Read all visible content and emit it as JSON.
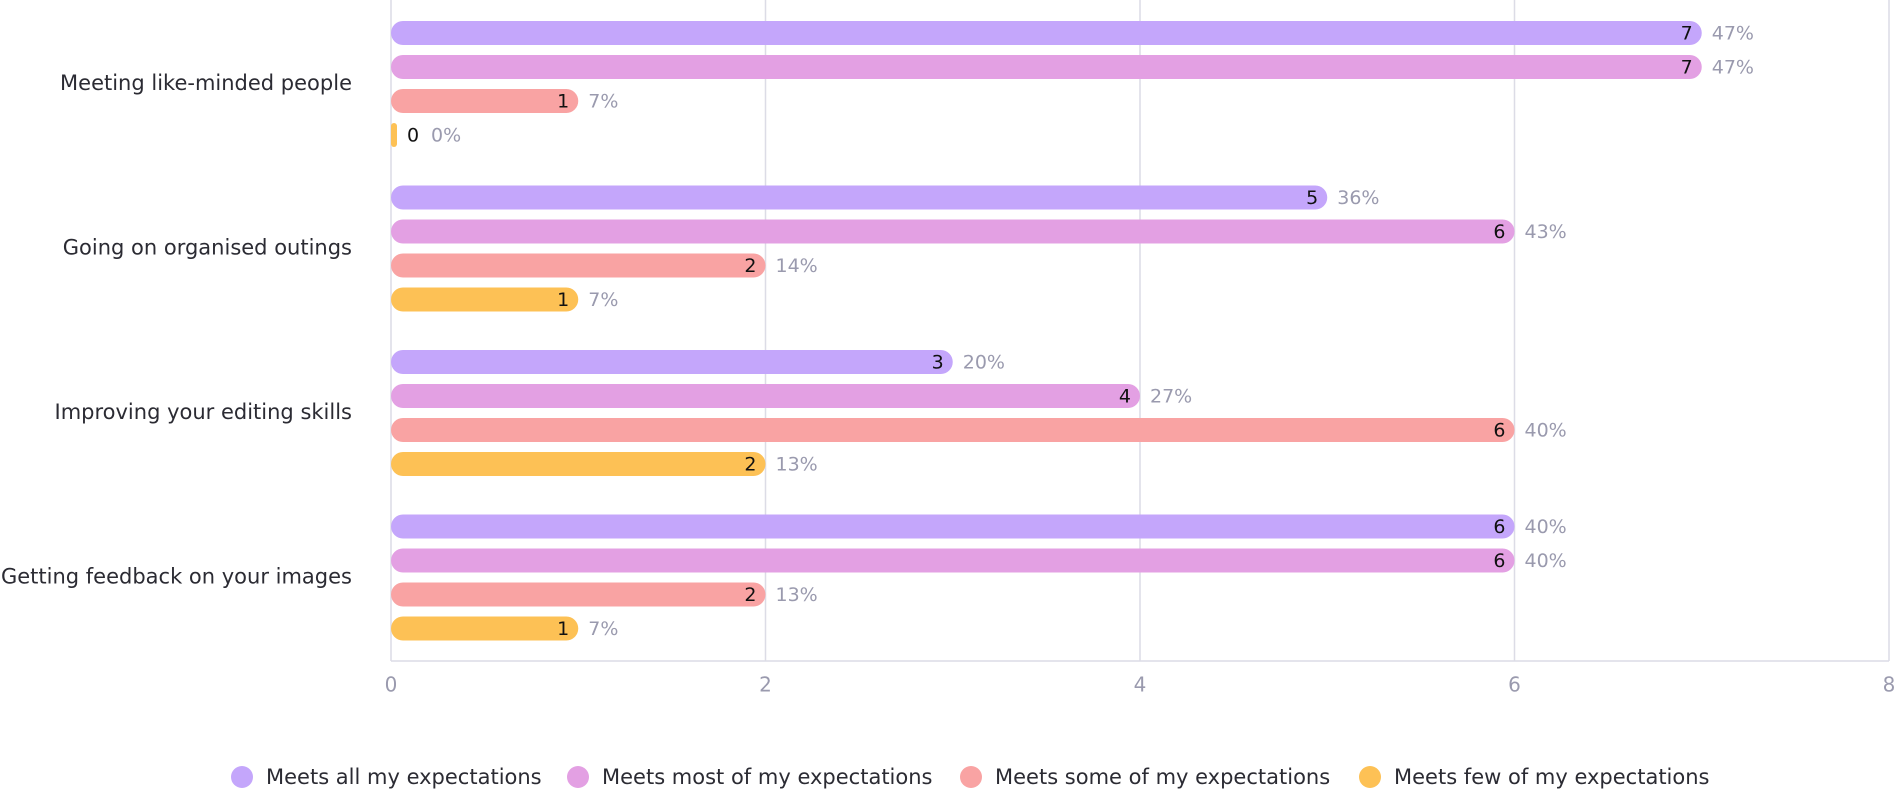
{
  "chart_data": {
    "type": "bar",
    "orientation": "horizontal",
    "categories": [
      "Meeting like-minded people",
      "Going on organised outings",
      "Improving your editing skills",
      "Getting feedback on your images"
    ],
    "series": [
      {
        "name": "Meets all my expectations",
        "color": "#c4a6fb",
        "values": [
          7,
          5,
          3,
          6
        ],
        "percent_labels": [
          "47%",
          "36%",
          "20%",
          "40%"
        ]
      },
      {
        "name": "Meets most of my expectations",
        "color": "#e3a0e3",
        "values": [
          7,
          6,
          4,
          6
        ],
        "percent_labels": [
          "47%",
          "43%",
          "27%",
          "40%"
        ]
      },
      {
        "name": "Meets some of my expectations",
        "color": "#f9a3a3",
        "values": [
          1,
          2,
          6,
          2
        ],
        "percent_labels": [
          "7%",
          "14%",
          "40%",
          "13%"
        ]
      },
      {
        "name": "Meets few of my expectations",
        "color": "#fdc155",
        "values": [
          0,
          1,
          2,
          1
        ],
        "percent_labels": [
          "0%",
          "7%",
          "13%",
          "7%"
        ]
      }
    ],
    "xlim": [
      0,
      8
    ],
    "xticks": [
      0,
      2,
      4,
      6,
      8
    ],
    "grid": true,
    "legend": "bottom"
  }
}
